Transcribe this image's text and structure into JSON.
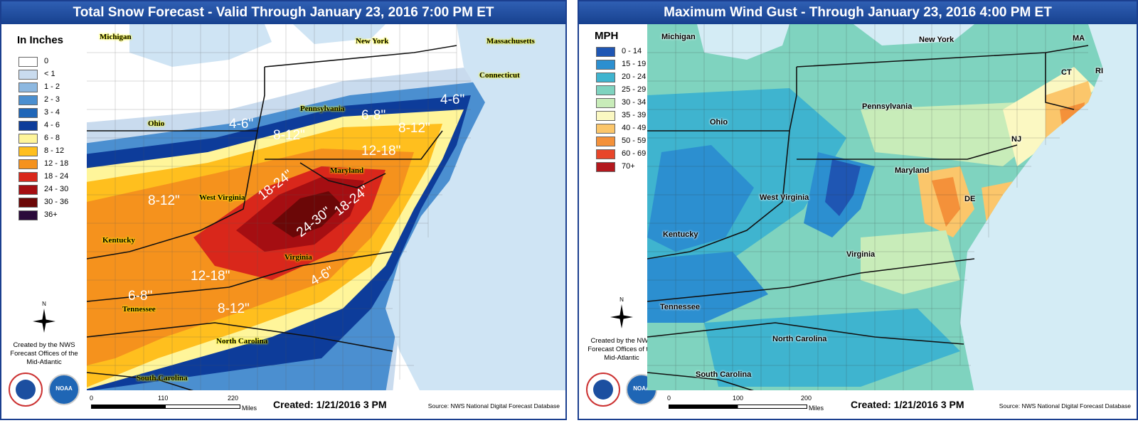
{
  "snow_panel": {
    "title": "Total Snow Forecast - Valid Through January 23, 2016 7:00 PM ET",
    "legend_title": "In Inches",
    "legend": [
      {
        "label": "0",
        "color": "#ffffff"
      },
      {
        "label": "< 1",
        "color": "#c9dbee"
      },
      {
        "label": "1 - 2",
        "color": "#8db8e0"
      },
      {
        "label": "2 - 3",
        "color": "#4b8fd0"
      },
      {
        "label": "3 - 4",
        "color": "#1f66b8"
      },
      {
        "label": "4 - 6",
        "color": "#0d3c9a"
      },
      {
        "label": "6 - 8",
        "color": "#fff59a"
      },
      {
        "label": "8 - 12",
        "color": "#ffbf1e"
      },
      {
        "label": "12 - 18",
        "color": "#f5921d"
      },
      {
        "label": "18 - 24",
        "color": "#d9271b"
      },
      {
        "label": "24 - 30",
        "color": "#a50e12"
      },
      {
        "label": "30 - 36",
        "color": "#6b0707"
      },
      {
        "label": "36+",
        "color": "#2a0a3a"
      }
    ],
    "states": [
      "Michigan",
      "New York",
      "Massachusetts",
      "Connecticut",
      "Ohio",
      "Pennsylvania",
      "Maryland",
      "West Virginia",
      "Kentucky",
      "Virginia",
      "Tennessee",
      "North Carolina",
      "South Carolina"
    ],
    "amount_labels": [
      "4-6\"",
      "4-6\"",
      "6-8\"",
      "8-12\"",
      "8-12\"",
      "12-18\"",
      "8-12\"",
      "18-24\"",
      "24-30\"",
      "18-24\"",
      "12-18\"",
      "4-6\"",
      "6-8\"",
      "8-12\""
    ],
    "credit": "Created by the NWS Forecast Offices of the Mid-Atlantic",
    "scale": [
      "0",
      "110",
      "220",
      "Miles"
    ],
    "created": "Created: 1/21/2016 3 PM",
    "source": "Source: NWS National Digital Forecast Database",
    "compass": "N"
  },
  "wind_panel": {
    "title": "Maximum Wind Gust - Through January 23, 2016 4:00 PM ET",
    "legend_title": "MPH",
    "legend": [
      {
        "label": "0 - 14",
        "color": "#1f56b3"
      },
      {
        "label": "15 - 19",
        "color": "#2c8fd0"
      },
      {
        "label": "20 - 24",
        "color": "#3fb4cf"
      },
      {
        "label": "25 - 29",
        "color": "#7fd3bf"
      },
      {
        "label": "30 - 34",
        "color": "#c8ecb9"
      },
      {
        "label": "35 - 39",
        "color": "#fbf8c2"
      },
      {
        "label": "40 - 49",
        "color": "#fbc66b"
      },
      {
        "label": "50 - 59",
        "color": "#f4913a"
      },
      {
        "label": "60 - 69",
        "color": "#e8462a"
      },
      {
        "label": "70+",
        "color": "#b3181d"
      }
    ],
    "states": [
      "Michigan",
      "New York",
      "MA",
      "CT",
      "RI",
      "Pennsylvania",
      "Ohio",
      "NJ",
      "Maryland",
      "DE",
      "West Virginia",
      "Kentucky",
      "Virginia",
      "Tennessee",
      "North Carolina",
      "South Carolina"
    ],
    "credit": "Created by the NWS Forecast Offices of the Mid-Atlantic",
    "scale": [
      "0",
      "100",
      "200",
      "Miles"
    ],
    "created": "Created: 1/21/2016 3 PM",
    "source": "Source: NWS National Digital Forecast Database",
    "compass": "N"
  }
}
